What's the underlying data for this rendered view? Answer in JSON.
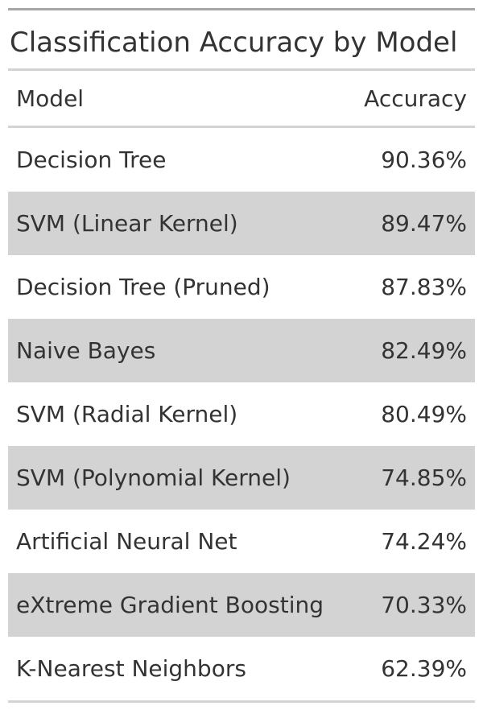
{
  "chart_data": {
    "type": "table",
    "title": "Classification Accuracy by Model",
    "columns": [
      "Model",
      "Accuracy"
    ],
    "rows": [
      {
        "model": "Decision Tree",
        "accuracy": "90.36%"
      },
      {
        "model": "SVM (Linear Kernel)",
        "accuracy": "89.47%"
      },
      {
        "model": "Decision Tree (Pruned)",
        "accuracy": "87.83%"
      },
      {
        "model": "Naive Bayes",
        "accuracy": "82.49%"
      },
      {
        "model": "SVM (Radial Kernel)",
        "accuracy": "80.49%"
      },
      {
        "model": "SVM (Polynomial Kernel)",
        "accuracy": "74.85%"
      },
      {
        "model": "Artificial Neural Net",
        "accuracy": "74.24%"
      },
      {
        "model": "eXtreme Gradient Boosting",
        "accuracy": "70.33%"
      },
      {
        "model": "K-Nearest Neighbors",
        "accuracy": "62.39%"
      }
    ],
    "striped_rows": true,
    "stripe_color": "#d3d3d3",
    "text_color": "#333333"
  }
}
